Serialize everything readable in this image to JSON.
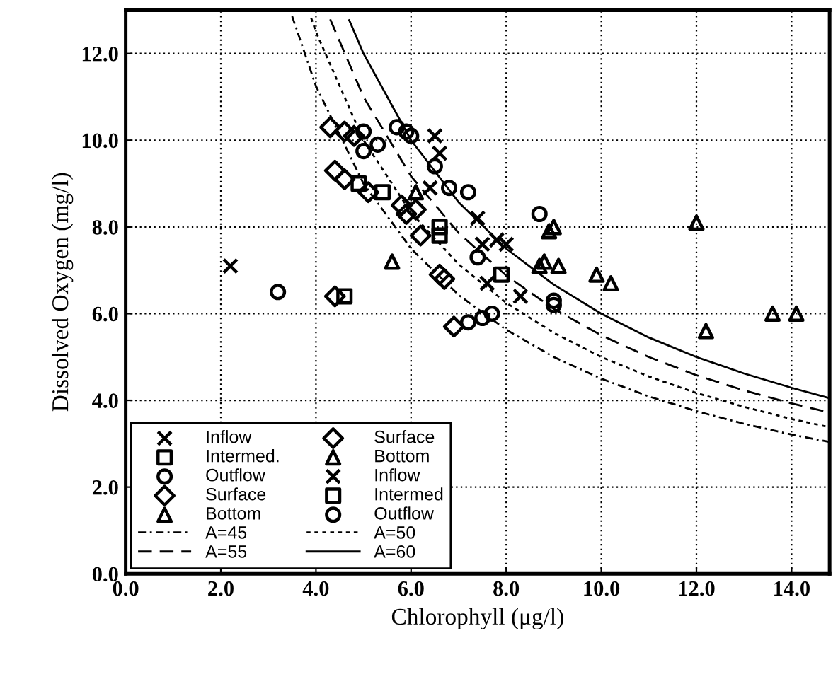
{
  "chart_data": {
    "type": "scatter",
    "xlabel": "Chlorophyll (μg/l)",
    "ylabel": "Dissolved Oxygen (mg/l)",
    "xlim": [
      0,
      14.8
    ],
    "ylim": [
      0,
      13
    ],
    "xticks": [
      {
        "value": 0,
        "label": "0.0"
      },
      {
        "value": 2,
        "label": "2.0"
      },
      {
        "value": 4,
        "label": "4.0"
      },
      {
        "value": 6,
        "label": "6.0"
      },
      {
        "value": 8,
        "label": "8.0"
      },
      {
        "value": 10,
        "label": "10.0"
      },
      {
        "value": 12,
        "label": "12.0"
      },
      {
        "value": 14,
        "label": "14.0"
      }
    ],
    "yticks": [
      {
        "value": 0,
        "label": "0.0"
      },
      {
        "value": 2,
        "label": "2.0"
      },
      {
        "value": 4,
        "label": "4.0"
      },
      {
        "value": 6,
        "label": "6.0"
      },
      {
        "value": 8,
        "label": "8.0"
      },
      {
        "value": 10,
        "label": "10.0"
      },
      {
        "value": 12,
        "label": "12.0"
      }
    ],
    "grid": true,
    "legend": "bottom left",
    "series": [
      {
        "name": "Inflow",
        "color": "#000000",
        "marker": "cross",
        "x": [
          2.2,
          6.4,
          7.5
        ],
        "values": [
          7.1,
          8.9,
          7.6
        ]
      },
      {
        "name": "Intermed.",
        "color": "#000000",
        "marker": "square",
        "x": [
          4.6,
          4.9
        ],
        "values": [
          6.4,
          9.0
        ]
      },
      {
        "name": "Outflow",
        "color": "#000000",
        "marker": "circle",
        "x": [
          3.2,
          5.0
        ],
        "values": [
          6.5,
          10.2
        ]
      },
      {
        "name": "Surface",
        "color": "#000000",
        "marker": "diamond",
        "x": [
          4.3,
          4.4,
          4.4,
          5.9,
          6.2,
          6.7,
          6.9
        ],
        "values": [
          10.3,
          9.3,
          6.4,
          8.3,
          7.8,
          6.8,
          5.7
        ]
      },
      {
        "name": "Bottom",
        "color": "#000000",
        "marker": "triangle",
        "x": [
          5.6,
          8.8,
          8.7,
          9.1,
          9.9,
          10.2,
          12.2,
          13.6,
          14.1,
          12.0,
          9.0
        ],
        "values": [
          7.2,
          7.2,
          7.1,
          7.1,
          6.9,
          6.7,
          5.6,
          6.0,
          6.0,
          8.1,
          8.0
        ]
      },
      {
        "name": "A=45",
        "type": "line",
        "color": "#000000",
        "line_style": "dashdot",
        "marker": "none",
        "x": [
          3.5,
          4,
          5,
          6,
          7,
          8,
          9,
          10,
          11,
          12,
          13,
          14,
          14.8
        ],
        "values": [
          12.86,
          11.25,
          9.0,
          7.5,
          6.43,
          5.63,
          5.0,
          4.5,
          4.09,
          3.75,
          3.46,
          3.21,
          3.04
        ]
      },
      {
        "name": "A=55",
        "type": "line",
        "color": "#000000",
        "line_style": "dashed",
        "marker": "none",
        "x": [
          4.3,
          5,
          6,
          7,
          8,
          9,
          10,
          11,
          12,
          13,
          14,
          14.8
        ],
        "values": [
          12.79,
          11.0,
          9.17,
          7.86,
          6.88,
          6.11,
          5.5,
          5.0,
          4.58,
          4.23,
          3.93,
          3.72
        ]
      },
      {
        "name": "Surface",
        "color": "#000000",
        "marker": "diamond",
        "x": [
          4.6,
          4.8,
          4.6,
          5.1,
          5.8,
          6.1,
          6.6
        ],
        "values": [
          10.2,
          10.1,
          9.1,
          8.8,
          8.5,
          8.4,
          6.9
        ]
      },
      {
        "name": "Bottom",
        "color": "#000000",
        "marker": "triangle",
        "x": [
          6.1,
          8.9
        ],
        "values": [
          8.8,
          7.9
        ]
      },
      {
        "name": "Inflow",
        "color": "#000000",
        "marker": "cross",
        "x": [
          6.5,
          6.6,
          7.4,
          7.8,
          8.0,
          7.6,
          8.3
        ],
        "values": [
          10.1,
          9.7,
          8.2,
          7.7,
          7.6,
          6.7,
          6.4
        ]
      },
      {
        "name": "Intermed",
        "color": "#000000",
        "marker": "square",
        "x": [
          5.4,
          6.6,
          6.6,
          7.9
        ],
        "values": [
          8.8,
          8.0,
          7.8,
          6.9
        ]
      },
      {
        "name": "Outflow",
        "color": "#000000",
        "marker": "circle",
        "x": [
          5.3,
          5.7,
          5.9,
          6.0,
          6.5,
          6.8,
          7.2,
          7.4,
          8.7,
          9.0,
          9.0,
          7.2,
          7.5,
          7.7,
          5.0
        ],
        "values": [
          9.9,
          10.3,
          10.2,
          10.1,
          9.4,
          8.9,
          8.8,
          7.3,
          8.3,
          6.3,
          6.2,
          5.8,
          5.9,
          6.0,
          9.75
        ]
      },
      {
        "name": "A=50",
        "type": "line",
        "color": "#000000",
        "line_style": "dotted",
        "marker": "none",
        "x": [
          3.9,
          4,
          5,
          6,
          7,
          8,
          9,
          10,
          11,
          12,
          13,
          14,
          14.8
        ],
        "values": [
          12.82,
          12.5,
          10.0,
          8.33,
          7.14,
          6.25,
          5.56,
          5.0,
          4.55,
          4.17,
          3.85,
          3.57,
          3.38
        ]
      },
      {
        "name": "A=60",
        "type": "line",
        "color": "#000000",
        "line_style": "solid",
        "marker": "none",
        "x": [
          4.7,
          5,
          6,
          7,
          8,
          9,
          10,
          11,
          12,
          13,
          14,
          14.8
        ],
        "values": [
          12.77,
          12.0,
          10.0,
          8.57,
          7.5,
          6.67,
          6.0,
          5.45,
          5.0,
          4.62,
          4.29,
          4.05
        ]
      }
    ]
  }
}
